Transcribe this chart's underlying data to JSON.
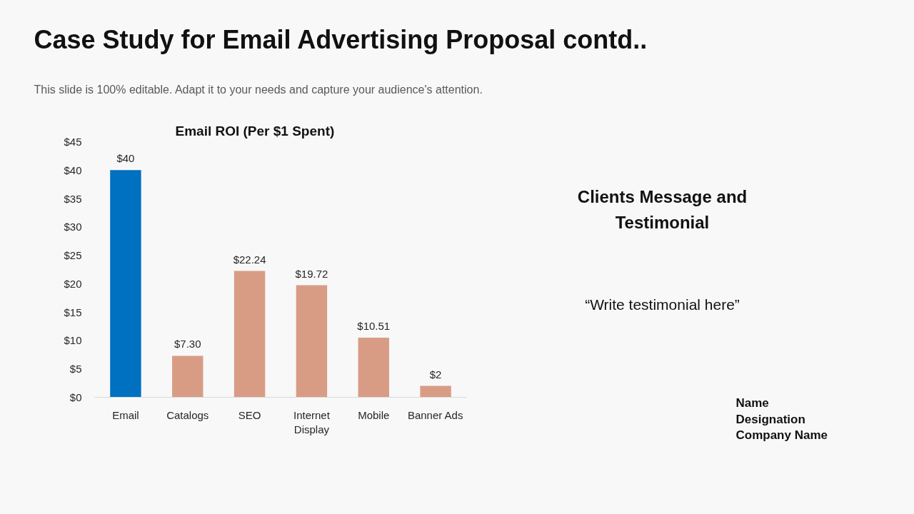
{
  "chart_data": [
    {
      "type": "other",
      "title": "Case Study for Email Advertising Proposal contd..",
      "subtitle": "This slide is 100% editable. Adapt it to your needs and capture your audience's attention."
    },
    {
      "type": "bar",
      "title": "Email ROI (Per $1 Spent)",
      "categories": [
        "Email",
        "Catalogs",
        "SEO",
        "Internet Display",
        "Mobile",
        "Banner Ads"
      ],
      "values": [
        40,
        7.3,
        22.24,
        19.72,
        10.51,
        2
      ],
      "colors": [
        "#0070c0",
        "#d89c85",
        "#d89c85",
        "#d89c85",
        "#d89c85",
        "#d89c85"
      ],
      "value_labels": [
        "$40",
        "$7.30",
        "$22.24",
        "$19.72",
        "$10.51",
        "$2"
      ],
      "ylim": [
        0,
        45
      ],
      "yticks": [
        {
          "value": 0,
          "label": "$0"
        },
        {
          "value": 5,
          "label": "$5"
        },
        {
          "value": 10,
          "label": "$10"
        },
        {
          "value": 15,
          "label": "$15"
        },
        {
          "value": 20,
          "label": "$20"
        },
        {
          "value": 25,
          "label": "$25"
        },
        {
          "value": 30,
          "label": "$30"
        },
        {
          "value": 35,
          "label": "$35"
        },
        {
          "value": 40,
          "label": "$40"
        },
        {
          "value": 45,
          "label": "$45"
        }
      ],
      "grid": false
    },
    {
      "type": "other",
      "title": "Clients Message and Testimonial",
      "annotations": [
        "“Write testimonial here”",
        "Name",
        "Designation",
        "Company Name"
      ]
    }
  ]
}
